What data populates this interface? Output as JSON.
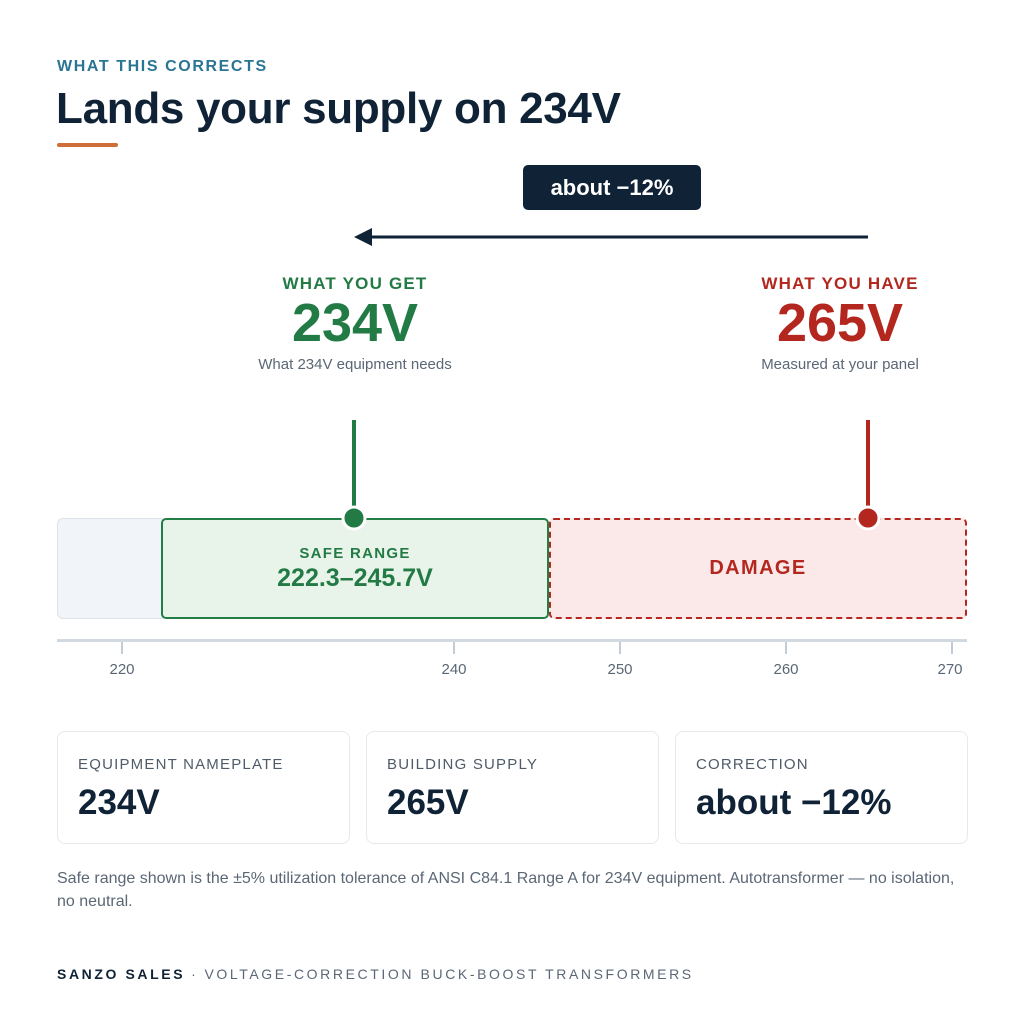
{
  "header": {
    "eyebrow": "WHAT THIS CORRECTS",
    "title": "Lands your supply on 234V"
  },
  "correction_pill": "about −12%",
  "target": {
    "caption": "WHAT YOU GET",
    "value": "234V",
    "sub": "What 234V equipment needs",
    "voltage": 234
  },
  "current": {
    "caption": "WHAT YOU HAVE",
    "value": "265V",
    "sub": "Measured at your panel",
    "voltage": 265
  },
  "scale": {
    "safe_caption": "SAFE RANGE",
    "safe_range": "222.3–245.7V",
    "safe_min": 222.3,
    "safe_max": 245.7,
    "damage_label": "DAMAGE",
    "ticks": [
      "220",
      "240",
      "250",
      "260",
      "270"
    ]
  },
  "cards": [
    {
      "caption": "EQUIPMENT NAMEPLATE",
      "value": "234V"
    },
    {
      "caption": "BUILDING SUPPLY",
      "value": "265V"
    },
    {
      "caption": "CORRECTION",
      "value": "about −12%"
    }
  ],
  "footnote": "Safe range shown is the ±5% utilization tolerance of ANSI C84.1 Range A for 234V equipment. Autotransformer — no isolation, no neutral.",
  "footer": {
    "brand": "SANZO SALES",
    "separator": "·",
    "tagline": "VOLTAGE-CORRECTION BUCK-BOOST TRANSFORMERS"
  },
  "colors": {
    "navy": "#0f2236",
    "accent": "#cf6e36",
    "safe": "#227a44",
    "danger": "#b3271f"
  }
}
